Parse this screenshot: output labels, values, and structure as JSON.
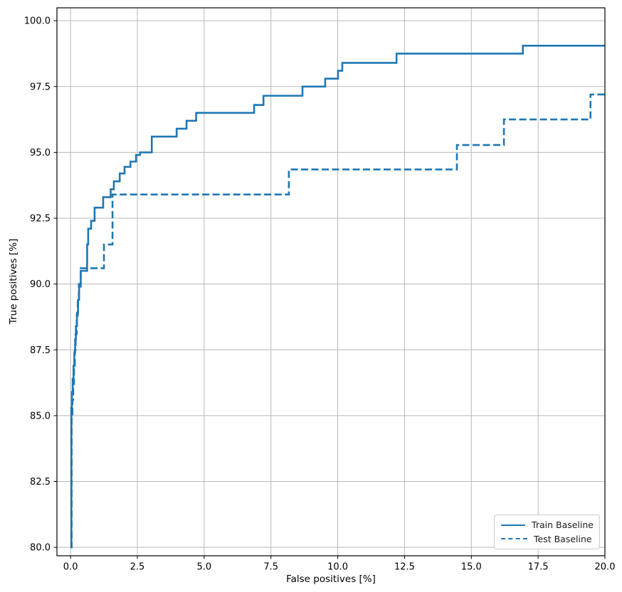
{
  "chart_data": {
    "type": "line",
    "title": "",
    "xlabel": "False positives [%]",
    "ylabel": "True positives [%]",
    "xlim": [
      -0.51,
      20
    ],
    "ylim": [
      79.68,
      100.49
    ],
    "xticks": [
      0.0,
      2.5,
      5.0,
      7.5,
      10.0,
      12.5,
      15.0,
      17.5,
      20.0
    ],
    "yticks": [
      80.0,
      82.5,
      85.0,
      87.5,
      90.0,
      92.5,
      95.0,
      97.5,
      100.0
    ],
    "grid": true,
    "grid_color": "#b8b8b8",
    "line_color": "#1f77b4",
    "legend_position": "lower right",
    "step_mode": "post",
    "series": [
      {
        "name": "Train Baseline",
        "style": "solid",
        "points": [
          [
            0.0,
            80.0
          ],
          [
            0.03,
            85.3
          ],
          [
            0.05,
            85.9
          ],
          [
            0.08,
            86.4
          ],
          [
            0.11,
            86.9
          ],
          [
            0.14,
            87.4
          ],
          [
            0.17,
            87.9
          ],
          [
            0.2,
            88.4
          ],
          [
            0.24,
            88.9
          ],
          [
            0.28,
            89.4
          ],
          [
            0.32,
            89.9
          ],
          [
            0.38,
            90.5
          ],
          [
            0.62,
            91.5
          ],
          [
            0.66,
            92.1
          ],
          [
            0.77,
            92.4
          ],
          [
            0.9,
            92.9
          ],
          [
            1.22,
            93.3
          ],
          [
            1.5,
            93.6
          ],
          [
            1.62,
            93.9
          ],
          [
            1.84,
            94.2
          ],
          [
            2.02,
            94.45
          ],
          [
            2.24,
            94.65
          ],
          [
            2.45,
            94.9
          ],
          [
            2.6,
            95.0
          ],
          [
            3.04,
            95.6
          ],
          [
            3.97,
            95.9
          ],
          [
            4.34,
            96.2
          ],
          [
            4.7,
            96.5
          ],
          [
            6.87,
            96.8
          ],
          [
            7.22,
            97.15
          ],
          [
            8.68,
            97.5
          ],
          [
            9.53,
            97.8
          ],
          [
            10.01,
            98.1
          ],
          [
            10.17,
            98.4
          ],
          [
            12.2,
            98.75
          ],
          [
            16.93,
            99.05
          ],
          [
            20.0,
            99.05
          ]
        ]
      },
      {
        "name": "Test Baseline",
        "style": "dashed",
        "points": [
          [
            0.0,
            80.0
          ],
          [
            0.04,
            85.0
          ],
          [
            0.07,
            85.6
          ],
          [
            0.1,
            86.2
          ],
          [
            0.13,
            86.9
          ],
          [
            0.16,
            87.5
          ],
          [
            0.19,
            88.1
          ],
          [
            0.23,
            88.8
          ],
          [
            0.27,
            89.4
          ],
          [
            0.31,
            90.0
          ],
          [
            0.38,
            90.6
          ],
          [
            1.25,
            91.5
          ],
          [
            1.57,
            93.4
          ],
          [
            8.17,
            94.35
          ],
          [
            14.46,
            95.28
          ],
          [
            16.22,
            96.25
          ],
          [
            19.46,
            97.2
          ],
          [
            20.0,
            97.2
          ]
        ]
      }
    ]
  },
  "legend": {
    "items": [
      {
        "label": "Train Baseline"
      },
      {
        "label": "Test Baseline"
      }
    ]
  }
}
